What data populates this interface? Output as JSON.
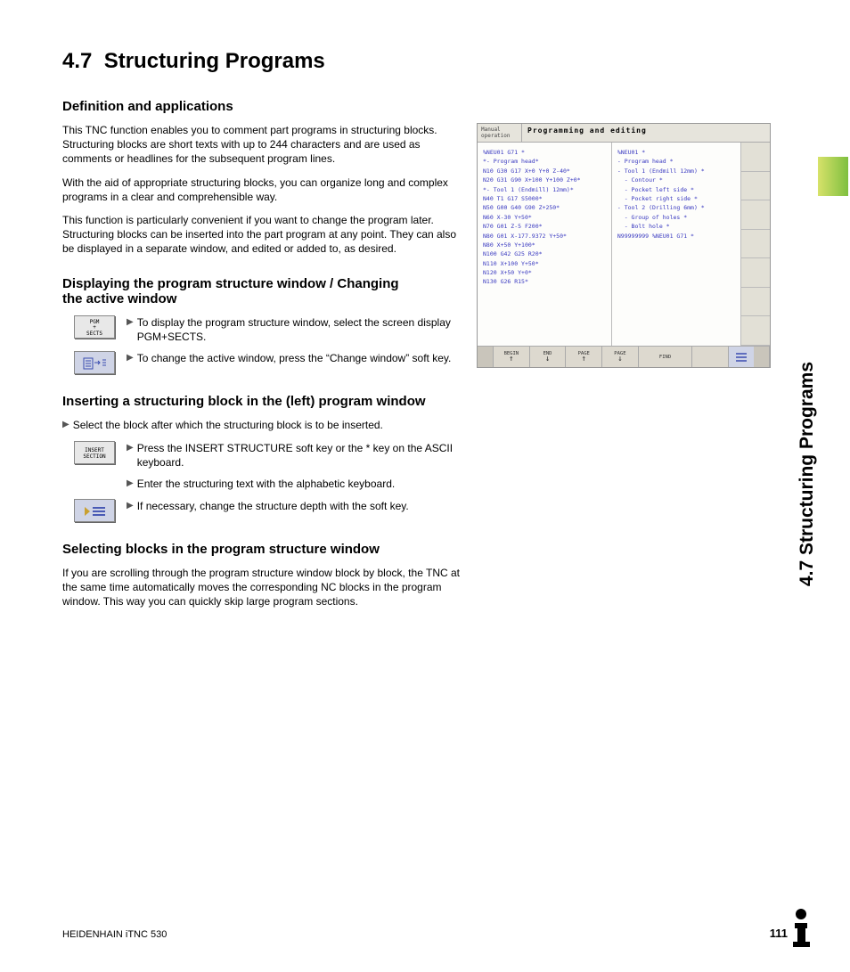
{
  "section": {
    "number": "4.7",
    "title": "Structuring Programs"
  },
  "side_tab_label": "4.7 Structuring Programs",
  "headings": {
    "h1": "Definition and applications",
    "h2": "Displaying the program structure window / Changing the active window",
    "h3": "Inserting a structuring block in the (left) program window",
    "h4": "Selecting blocks in the program structure window"
  },
  "paragraphs": {
    "p1": "This TNC function enables you to comment part programs in structuring blocks. Structuring blocks are short texts with up to 244 characters and are used as comments or headlines for the subsequent program lines.",
    "p2": "With the aid of appropriate structuring blocks, you can organize long and complex programs in a clear and comprehensible way.",
    "p3": "This function is particularly convenient if you want to change the program later. Structuring blocks can be inserted into the part program at any point. They can also be displayed in a separate window, and edited or added to, as desired.",
    "p4": "Select the block after which the structuring block is to be inserted.",
    "p5": "If you are scrolling through the program structure window block by block, the TNC at the same time automatically moves the corresponding NC blocks in the program window. This way you can quickly skip large program sections."
  },
  "instructions": {
    "disp1": "To display the program structure window, select the screen display PGM+SECTS.",
    "disp2": "To change the active window, press the “Change window” soft key.",
    "ins1": "Press the INSERT STRUCTURE soft key or the * key on the ASCII keyboard.",
    "ins2": "Enter the structuring text with the alphabetic keyboard.",
    "ins3": "If necessary, change the structure depth with the soft key."
  },
  "softkeys": {
    "pgm_sects": "PGM\n+\nSECTS",
    "insert_section": "INSERT\nSECTION"
  },
  "screenshot": {
    "mode_label": "Manual\noperation",
    "title": "Programming and editing",
    "left_pane": [
      "%NEU01 G71 *",
      "*- Program head*",
      "N10 G30 G17 X+0 Y+0 Z-40*",
      "N20 G31 G90 X+100 Y+100 Z+0*",
      "*- Tool 1 (Endmill) 12mm)*",
      "N40 T1 G17 S5000*",
      "N50 G00 G40 G90 Z+250*",
      "N60 X-30 Y+50*",
      "N70 G01 Z-5 F200*",
      "N80 G01 X-177.9372 Y+50*",
      "N80 X+50 Y+100*",
      "N100 G42 G25 R20*",
      "N110 X+100 Y+50*",
      "N120 X+50 Y+0*",
      "N130 G26 R15*"
    ],
    "right_pane": [
      "%NEU01 *",
      "- Program head *",
      "- Tool 1 (Endmill 12mm) *",
      "  - Contour *",
      "  - Pocket left side *",
      "  - Pocket right side *",
      "- Tool 2 (Drilling 6mm) *",
      "  - Group of holes *",
      "  - Bolt hole *",
      "N99999999 %NEU01 G71 *"
    ],
    "fkeys": [
      "BEGIN",
      "END",
      "PAGE",
      "PAGE",
      "FIND"
    ],
    "fkey_arrows": [
      "↑",
      "↓",
      "↑",
      "↓",
      ""
    ]
  },
  "footer": {
    "left": "HEIDENHAIN iTNC 530",
    "page": "111"
  }
}
